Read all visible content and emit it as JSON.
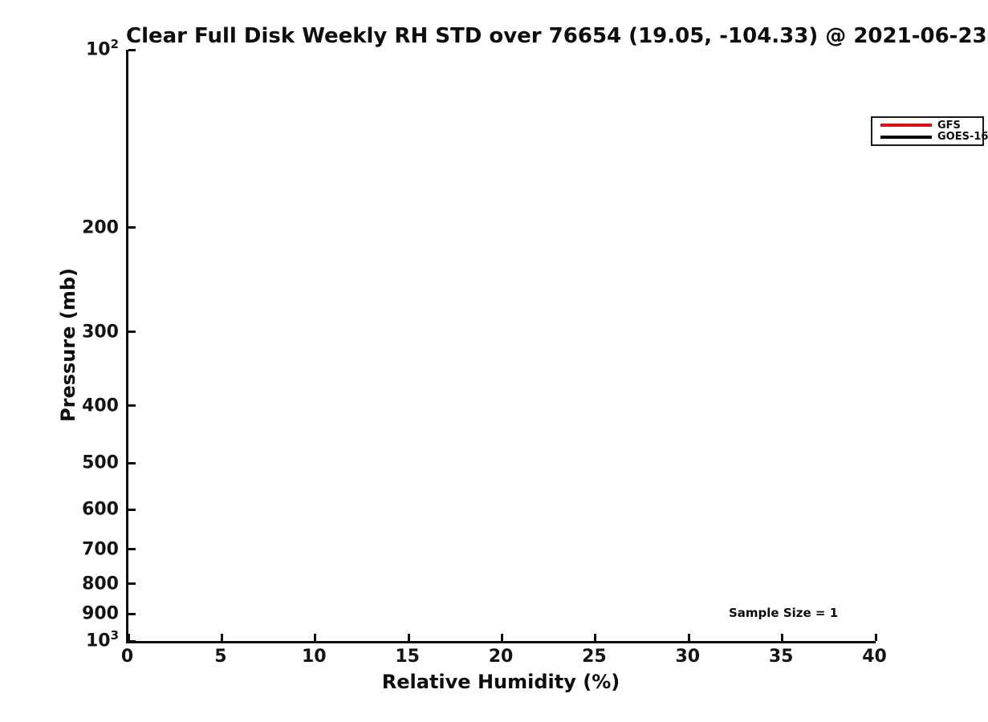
{
  "chart_data": {
    "type": "line",
    "title": "Clear Full Disk Weekly RH STD over 76654 (19.05, -104.33) @ 2021-06-23",
    "xlabel": "Relative Humidity (%)",
    "ylabel": "Pressure (mb)",
    "xlim": [
      0,
      40
    ],
    "xticks": [
      0,
      5,
      10,
      15,
      20,
      25,
      30,
      35,
      40
    ],
    "xtick_labels": [
      "0",
      "5",
      "10",
      "15",
      "20",
      "25",
      "30",
      "35",
      "40"
    ],
    "yscale": "log",
    "ylim_mb": [
      100,
      1000
    ],
    "y_axis_inverted_note": "100 mb at top, 1000 mb at bottom",
    "yticks_mb": [
      100,
      200,
      300,
      400,
      500,
      600,
      700,
      800,
      900,
      1000
    ],
    "ytick_labels": [
      "10^2",
      "200",
      "300",
      "400",
      "500",
      "600",
      "700",
      "800",
      "900",
      "10^3"
    ],
    "grid": false,
    "spines": [
      "left",
      "bottom"
    ],
    "tick_direction": "in",
    "legend_position": "upper right",
    "series": [
      {
        "name": "GFS",
        "color": "#d41414",
        "points": []
      },
      {
        "name": "GOES-16",
        "color": "#000000",
        "points": []
      }
    ],
    "annotations": [
      {
        "text": "Sample Size = 1",
        "approx_x": 35,
        "approx_y_mb": 900
      }
    ],
    "sample_size": 1
  },
  "colors": {
    "foreground": "#0d0d0d",
    "background": "#ffffff"
  }
}
